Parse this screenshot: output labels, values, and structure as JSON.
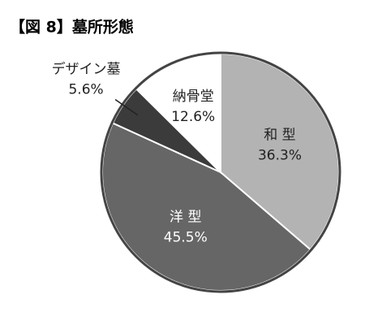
{
  "chart_data": {
    "type": "pie",
    "title": "【図 8】墓所形態",
    "categories": [
      "和 型",
      "洋 型",
      "デザイン墓",
      "納骨堂"
    ],
    "values": [
      36.3,
      45.5,
      5.6,
      12.6
    ],
    "value_labels": [
      "36.3%",
      "45.5%",
      "5.6%",
      "12.6%"
    ],
    "colors": [
      "#b3b3b3",
      "#666666",
      "#3b3b3b",
      "#ffffff"
    ]
  }
}
